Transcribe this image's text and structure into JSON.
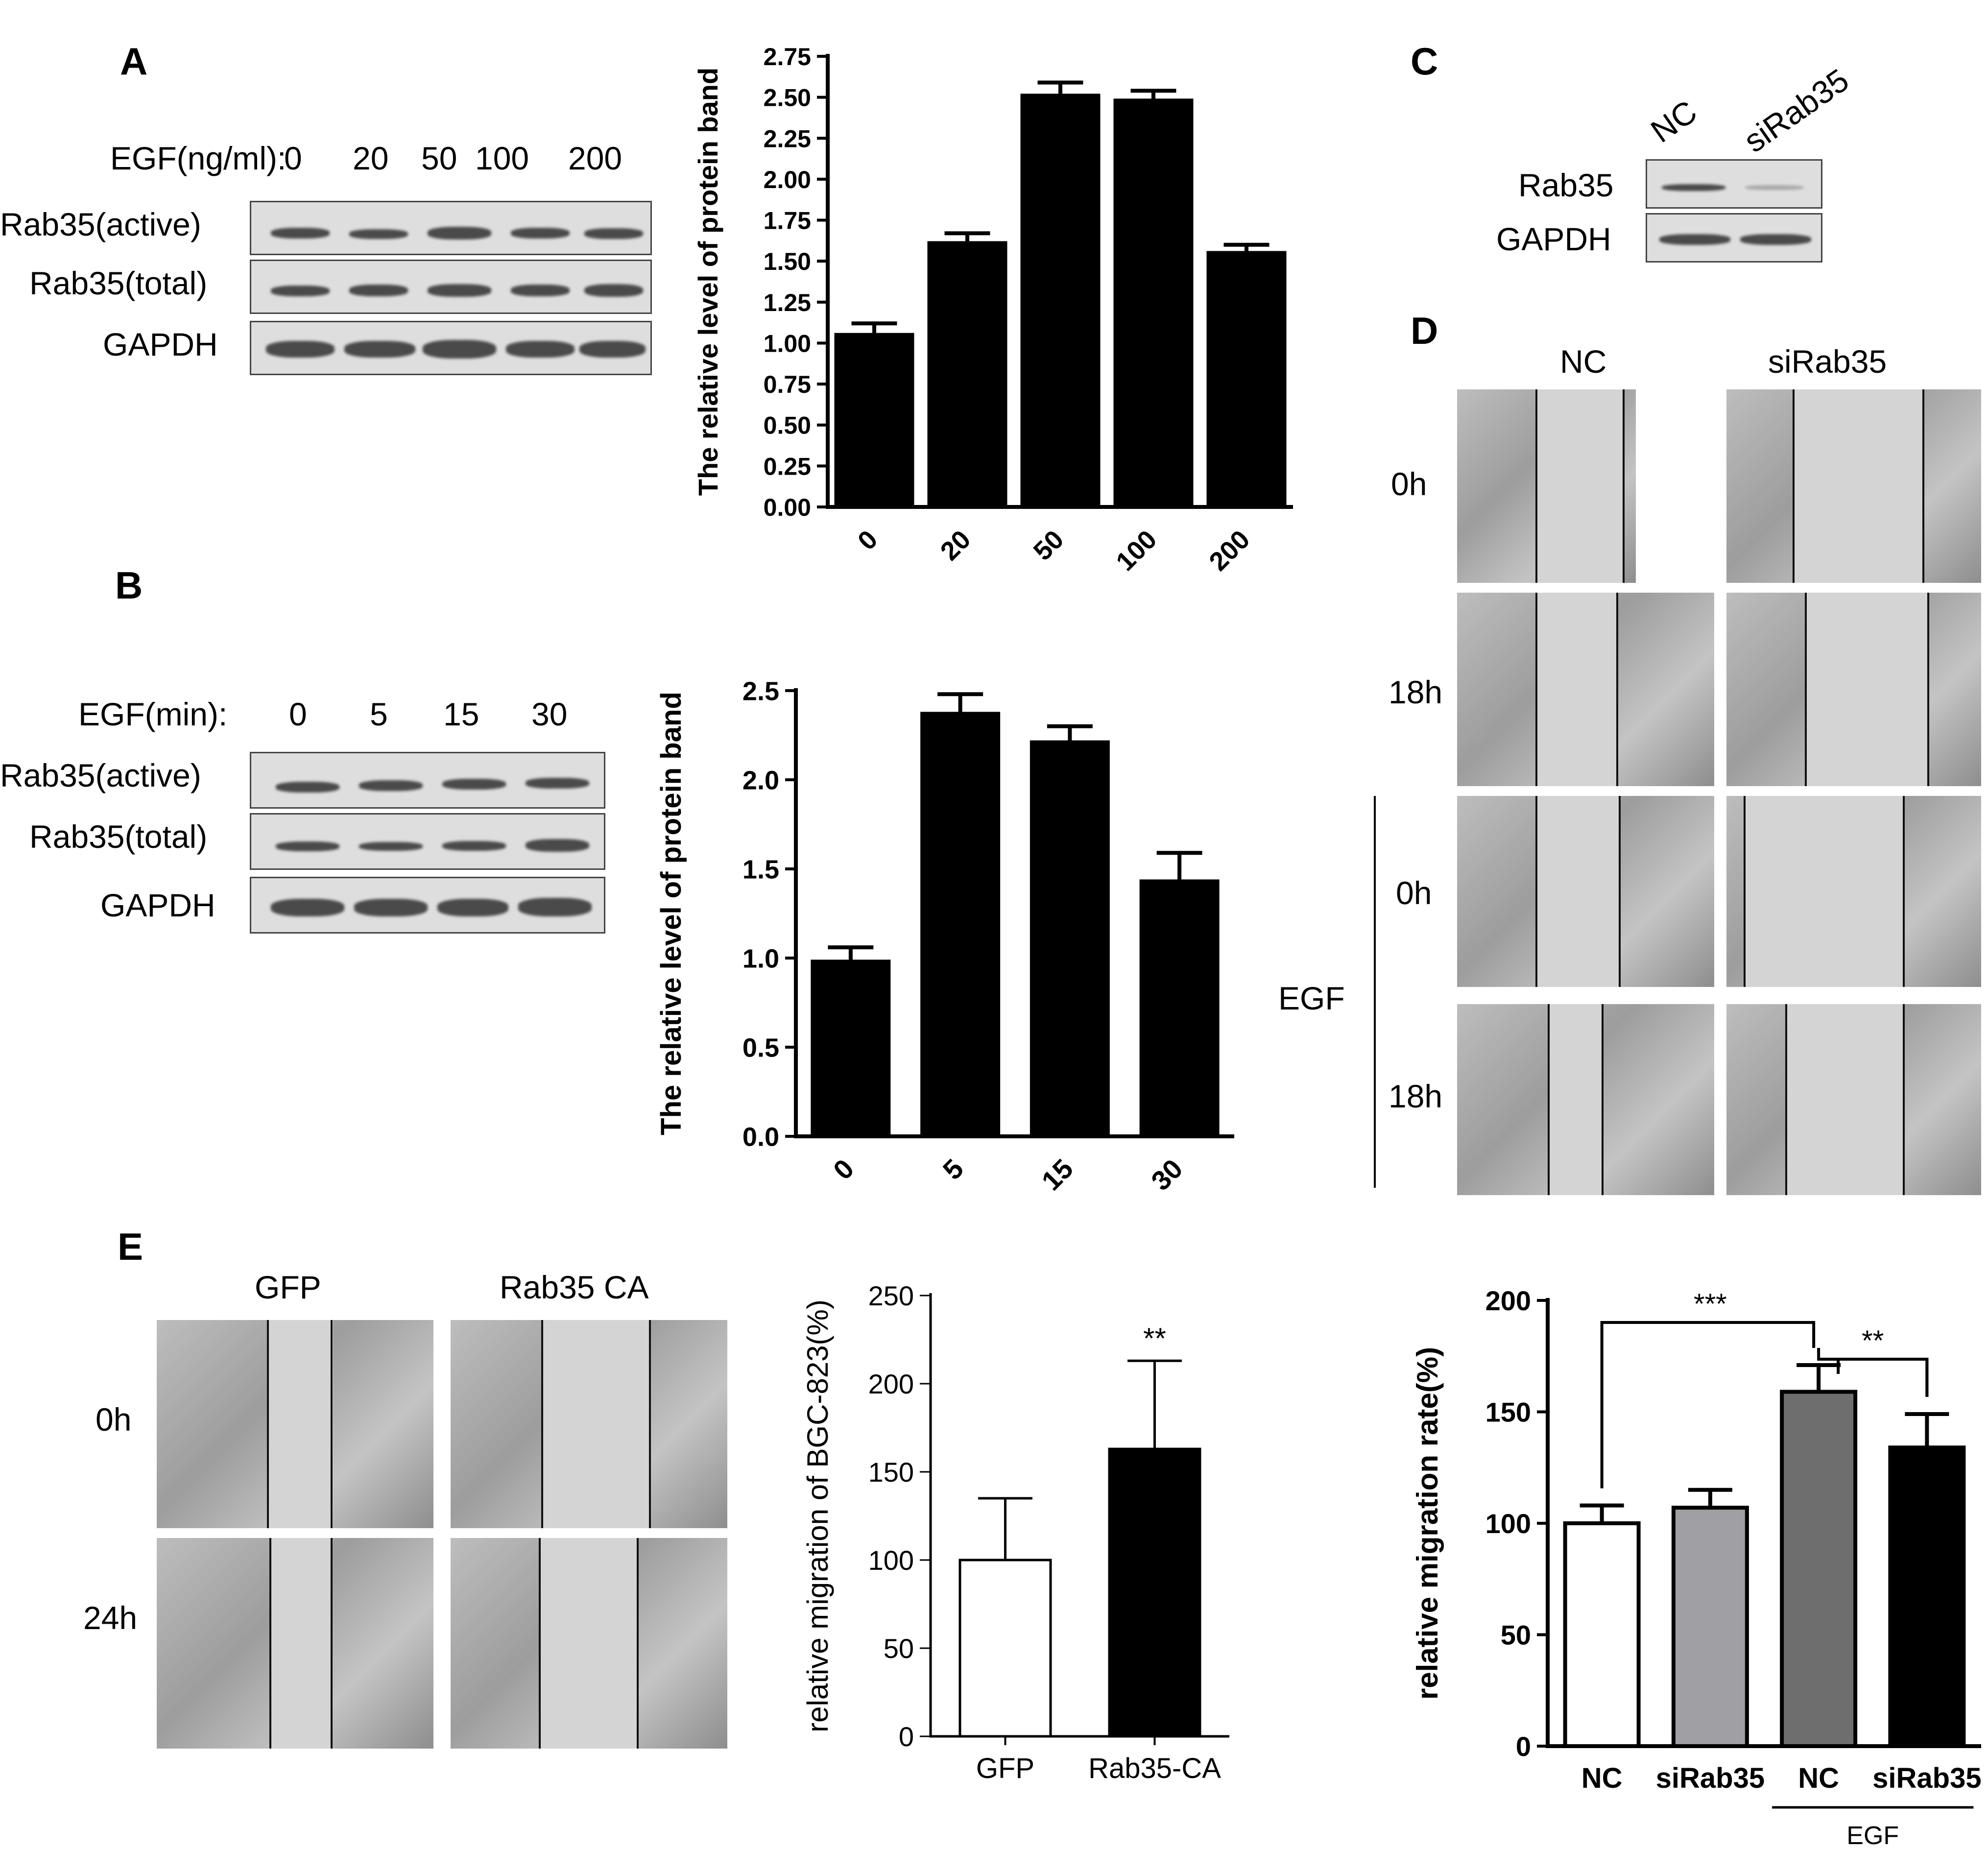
{
  "panels": {
    "A": "A",
    "B": "B",
    "C": "C",
    "D": "D",
    "E": "E"
  },
  "blotA": {
    "header_label": "EGF(ng/ml):",
    "lanes": [
      "0",
      "20",
      "50",
      "100",
      "200"
    ],
    "rows": [
      "Rab35(active)",
      "Rab35(total)",
      "GAPDH"
    ]
  },
  "blotB": {
    "header_label": "EGF(min):",
    "lanes": [
      "0",
      "5",
      "15",
      "30"
    ],
    "rows": [
      "Rab35(active)",
      "Rab35(total)",
      "GAPDH"
    ]
  },
  "blotC": {
    "lanes": [
      "NC",
      "siRab35"
    ],
    "rows": [
      "Rab35",
      "GAPDH"
    ]
  },
  "panelD": {
    "columns": [
      "NC",
      "siRab35"
    ],
    "rows": [
      "0h",
      "18h",
      "0h",
      "18h"
    ],
    "group_label": "EGF"
  },
  "panelE": {
    "columns": [
      "GFP",
      "Rab35 CA"
    ],
    "rows": [
      "0h",
      "24h"
    ]
  },
  "colors": {
    "bar_black": "#000000",
    "bar_light_gray": "#a0a0a4",
    "bar_dark_gray": "#6e6e6e",
    "bar_white": "#ffffff"
  },
  "chart_data": [
    {
      "id": "chartA",
      "type": "bar",
      "categories": [
        "0",
        "20",
        "50",
        "100",
        "200"
      ],
      "values": [
        1.05,
        1.61,
        2.51,
        2.48,
        1.55
      ],
      "errors": [
        0.07,
        0.06,
        0.08,
        0.06,
        0.05
      ],
      "ylabel": "The  relative level of protein band",
      "ylim": [
        0,
        2.75
      ],
      "yticks": [
        "0.00",
        "0.25",
        "0.50",
        "0.75",
        "1.00",
        "1.25",
        "1.50",
        "1.75",
        "2.00",
        "2.25",
        "2.50",
        "2.75"
      ],
      "bar_colors": [
        "#000000",
        "#000000",
        "#000000",
        "#000000",
        "#000000"
      ],
      "grid": false
    },
    {
      "id": "chartB",
      "type": "bar",
      "categories": [
        "0",
        "5",
        "15",
        "30"
      ],
      "values": [
        0.98,
        2.37,
        2.21,
        1.43
      ],
      "errors": [
        0.08,
        0.11,
        0.09,
        0.16
      ],
      "ylabel": "The  relative level of protein band",
      "ylim": [
        0,
        2.5
      ],
      "yticks": [
        "0.0",
        "0.5",
        "1.0",
        "1.5",
        "2.0",
        "2.5"
      ],
      "bar_colors": [
        "#000000",
        "#000000",
        "#000000",
        "#000000"
      ],
      "grid": false
    },
    {
      "id": "chartE",
      "type": "bar",
      "categories": [
        "GFP",
        "Rab35-CA"
      ],
      "values": [
        100,
        163
      ],
      "errors": [
        35,
        50
      ],
      "annotations": [
        "",
        "**"
      ],
      "ylabel": "relative migration of BGC-823(%)",
      "ylim": [
        0,
        250
      ],
      "yticks": [
        "0",
        "50",
        "100",
        "150",
        "200",
        "250"
      ],
      "bar_colors": [
        "#ffffff",
        "#000000"
      ],
      "grid": false
    },
    {
      "id": "chartF",
      "type": "bar",
      "categories": [
        "NC",
        "siRab35",
        "NC",
        "siRab35"
      ],
      "values": [
        100,
        107,
        159,
        134
      ],
      "errors": [
        8,
        8,
        12,
        15
      ],
      "ylabel": "relative migration rate(%)",
      "ylim": [
        0,
        200
      ],
      "yticks": [
        "0",
        "50",
        "100",
        "150",
        "200"
      ],
      "bar_colors": [
        "#ffffff",
        "#a0a0a4",
        "#6e6e6e",
        "#000000"
      ],
      "group_label": "EGF",
      "significance": [
        {
          "from": 0,
          "to": 2,
          "label": "***"
        },
        {
          "from": 2,
          "to": 3,
          "label": "**"
        }
      ],
      "grid": false
    }
  ]
}
